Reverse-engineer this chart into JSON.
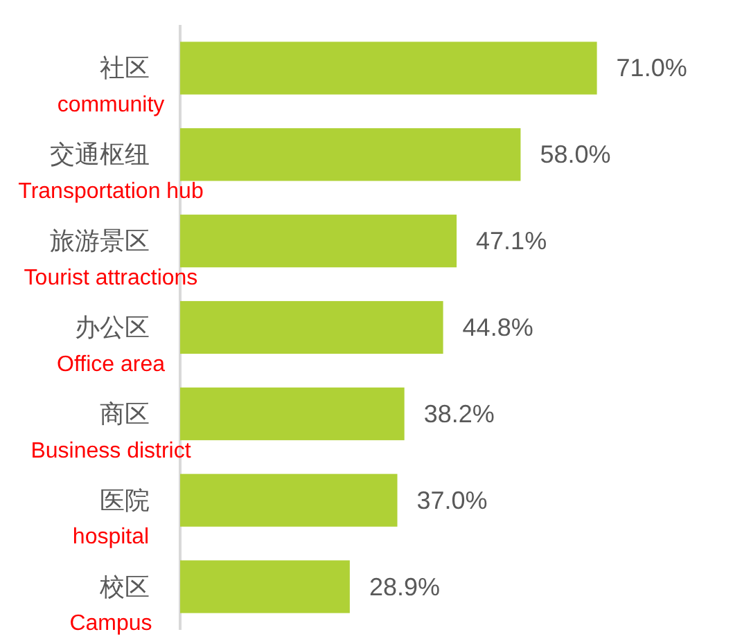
{
  "chart_data": {
    "type": "bar",
    "orientation": "horizontal",
    "categories": [
      "社区",
      "交通枢纽",
      "旅游景区",
      "办公区",
      "商区",
      "医院",
      "校区"
    ],
    "values": [
      71.0,
      58.0,
      47.1,
      44.8,
      38.2,
      37.0,
      28.9
    ],
    "value_labels": [
      "71.0%",
      "58.0%",
      "47.1%",
      "44.8%",
      "38.2%",
      "37.0%",
      "28.9%"
    ],
    "color": "#afd136",
    "annotations": [
      "community",
      "Transportation hub",
      "Tourist attractions",
      "Office area",
      "Business district",
      "hospital",
      "Campus"
    ]
  }
}
